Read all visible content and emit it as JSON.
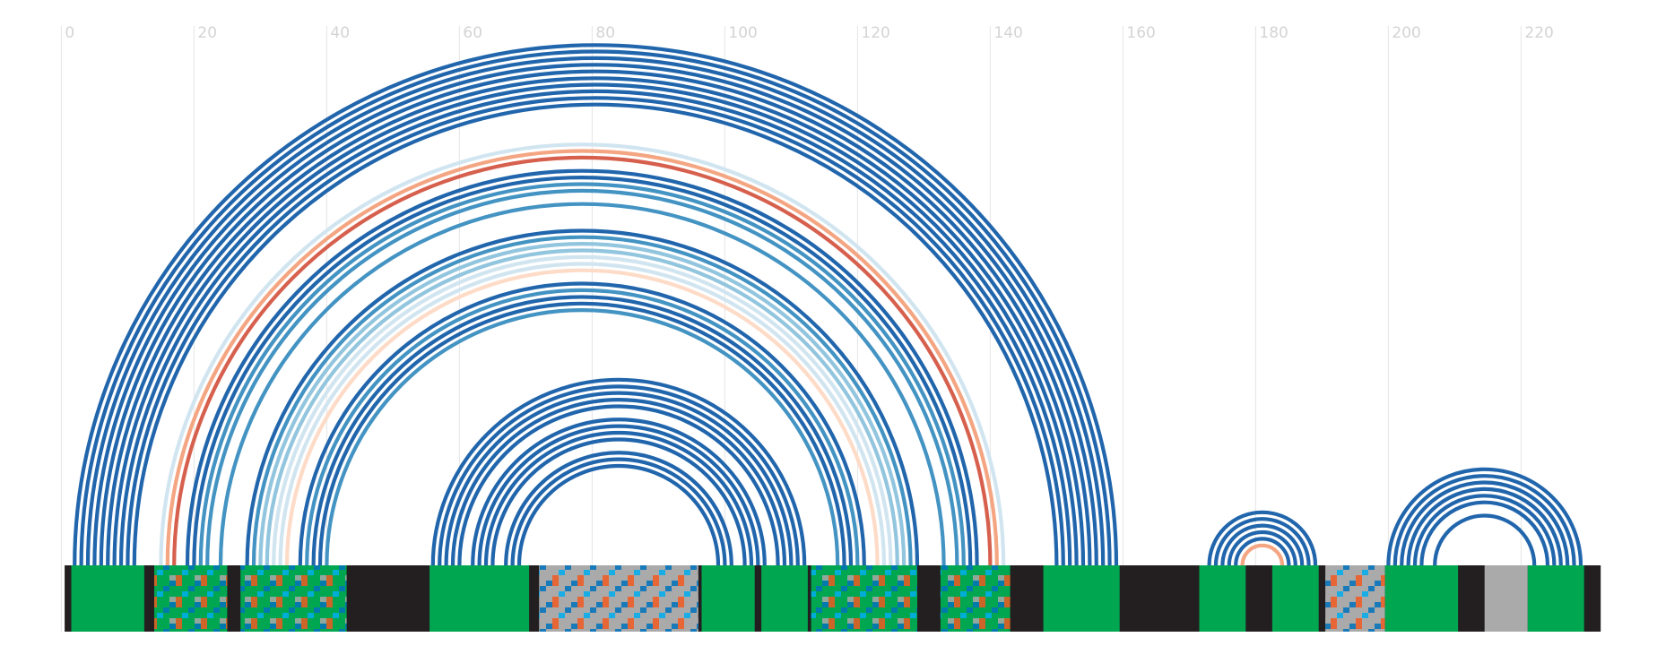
{
  "chart_data": {
    "type": "arc",
    "xlim": [
      -1,
      240
    ],
    "xticks": [
      0,
      20,
      40,
      60,
      80,
      100,
      120,
      140,
      160,
      180,
      200,
      220
    ],
    "grid": true,
    "track": [
      0.5,
      232
    ],
    "track_color": "#231f20",
    "blocks": [
      {
        "start": 1.5,
        "end": 12.5,
        "color": "#00a650"
      },
      {
        "start": 14,
        "end": 25,
        "color": "#00a650",
        "pattern": true
      },
      {
        "start": 27,
        "end": 43,
        "color": "#00a650",
        "pattern": true
      },
      {
        "start": 55.5,
        "end": 70.5,
        "color": "#00a650"
      },
      {
        "start": 72,
        "end": 96,
        "color": "#aaaaaa",
        "pattern": true
      },
      {
        "start": 96.5,
        "end": 104.5,
        "color": "#00a650"
      },
      {
        "start": 105.5,
        "end": 112.5,
        "color": "#00a650"
      },
      {
        "start": 113,
        "end": 129,
        "color": "#00a650",
        "pattern": true
      },
      {
        "start": 132.5,
        "end": 143,
        "color": "#00a650",
        "pattern": true
      },
      {
        "start": 148,
        "end": 159.5,
        "color": "#00a650"
      },
      {
        "start": 171.5,
        "end": 178.5,
        "color": "#00a650"
      },
      {
        "start": 182.5,
        "end": 189.5,
        "color": "#00a650"
      },
      {
        "start": 190.5,
        "end": 199.5,
        "color": "#aaaaaa",
        "pattern": true
      },
      {
        "start": 199.5,
        "end": 210.5,
        "color": "#00a650"
      },
      {
        "start": 214.5,
        "end": 221,
        "color": "#aaaaaa"
      },
      {
        "start": 221,
        "end": 229.5,
        "color": "#00a650"
      }
    ],
    "arcs": [
      {
        "start": 2,
        "end": 159,
        "color": "#2166ac"
      },
      {
        "start": 3,
        "end": 158,
        "color": "#2166ac"
      },
      {
        "start": 4,
        "end": 157,
        "color": "#2166ac"
      },
      {
        "start": 5,
        "end": 156,
        "color": "#2166ac"
      },
      {
        "start": 6,
        "end": 155,
        "color": "#2166ac"
      },
      {
        "start": 7,
        "end": 154,
        "color": "#2166ac"
      },
      {
        "start": 8,
        "end": 153,
        "color": "#2166ac"
      },
      {
        "start": 9,
        "end": 152,
        "color": "#2166ac"
      },
      {
        "start": 10,
        "end": 151,
        "color": "#2166ac"
      },
      {
        "start": 11,
        "end": 150,
        "color": "#2166ac"
      },
      {
        "start": 15,
        "end": 142,
        "color": "#d1e5f0"
      },
      {
        "start": 16,
        "end": 141,
        "color": "#f4a582"
      },
      {
        "start": 17,
        "end": 140,
        "color": "#d6604d"
      },
      {
        "start": 19,
        "end": 138,
        "color": "#2166ac"
      },
      {
        "start": 20,
        "end": 137,
        "color": "#2166ac"
      },
      {
        "start": 21,
        "end": 136,
        "color": "#4393c3"
      },
      {
        "start": 22,
        "end": 135,
        "color": "#4393c3"
      },
      {
        "start": 24,
        "end": 133,
        "color": "#4393c3"
      },
      {
        "start": 28,
        "end": 129,
        "color": "#2166ac"
      },
      {
        "start": 29,
        "end": 128,
        "color": "#4393c3"
      },
      {
        "start": 30,
        "end": 127,
        "color": "#92c5de"
      },
      {
        "start": 31,
        "end": 126,
        "color": "#92c5de"
      },
      {
        "start": 32,
        "end": 125,
        "color": "#d1e5f0"
      },
      {
        "start": 33,
        "end": 124,
        "color": "#d1e5f0"
      },
      {
        "start": 34,
        "end": 123,
        "color": "#fddbc7"
      },
      {
        "start": 36,
        "end": 121,
        "color": "#2166ac"
      },
      {
        "start": 37,
        "end": 120,
        "color": "#4393c3"
      },
      {
        "start": 38,
        "end": 119,
        "color": "#2166ac"
      },
      {
        "start": 39,
        "end": 118,
        "color": "#2166ac"
      },
      {
        "start": 40,
        "end": 117,
        "color": "#4393c3"
      },
      {
        "start": 56,
        "end": 112,
        "color": "#2166ac"
      },
      {
        "start": 57,
        "end": 111,
        "color": "#2166ac"
      },
      {
        "start": 58,
        "end": 110,
        "color": "#2166ac"
      },
      {
        "start": 59,
        "end": 109,
        "color": "#2166ac"
      },
      {
        "start": 60,
        "end": 108,
        "color": "#2166ac"
      },
      {
        "start": 62,
        "end": 106,
        "color": "#2166ac"
      },
      {
        "start": 63,
        "end": 105,
        "color": "#2166ac"
      },
      {
        "start": 64,
        "end": 104,
        "color": "#2166ac"
      },
      {
        "start": 65,
        "end": 103,
        "color": "#2166ac"
      },
      {
        "start": 67,
        "end": 101,
        "color": "#2166ac"
      },
      {
        "start": 68,
        "end": 100,
        "color": "#2166ac"
      },
      {
        "start": 69,
        "end": 99,
        "color": "#2166ac"
      },
      {
        "start": 173,
        "end": 189,
        "color": "#2166ac"
      },
      {
        "start": 174,
        "end": 188,
        "color": "#2166ac"
      },
      {
        "start": 175,
        "end": 187,
        "color": "#2166ac"
      },
      {
        "start": 176,
        "end": 186,
        "color": "#2166ac"
      },
      {
        "start": 177,
        "end": 185,
        "color": "#2166ac"
      },
      {
        "start": 178,
        "end": 184,
        "color": "#f4a582"
      },
      {
        "start": 200,
        "end": 229,
        "color": "#2166ac"
      },
      {
        "start": 201,
        "end": 228,
        "color": "#2166ac"
      },
      {
        "start": 202,
        "end": 227,
        "color": "#2166ac"
      },
      {
        "start": 203,
        "end": 226,
        "color": "#2166ac"
      },
      {
        "start": 204,
        "end": 225,
        "color": "#2166ac"
      },
      {
        "start": 205,
        "end": 224,
        "color": "#2166ac"
      },
      {
        "start": 207,
        "end": 222,
        "color": "#2166ac"
      }
    ]
  }
}
